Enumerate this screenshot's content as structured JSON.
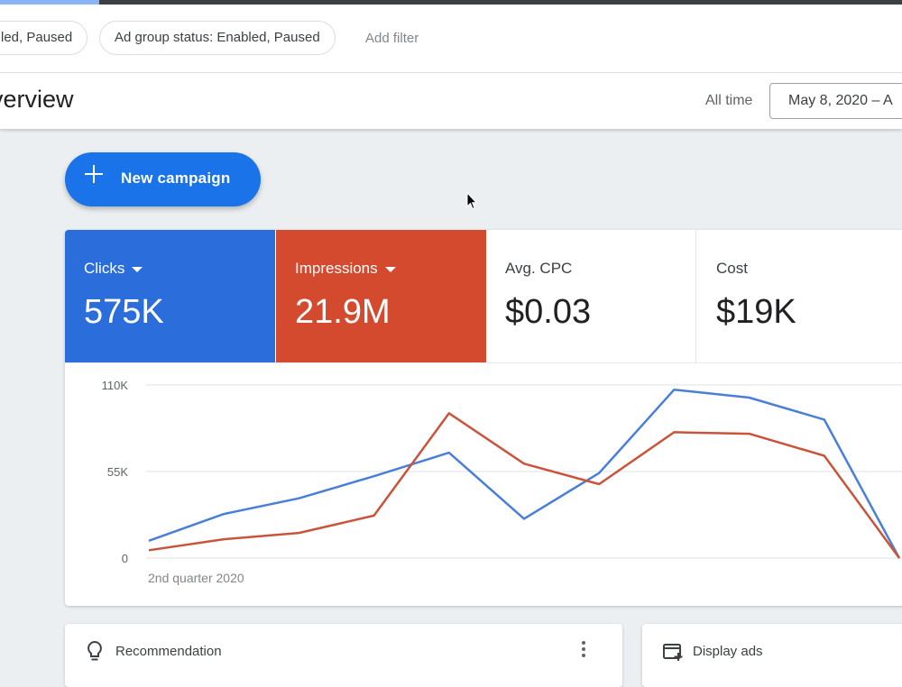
{
  "filters": {
    "chips": [
      "led, Paused",
      "Ad group status: Enabled, Paused"
    ],
    "add_filter": "Add filter"
  },
  "header": {
    "title": "verview",
    "range_label": "All time",
    "date_range": "May 8, 2020 – A"
  },
  "fab": {
    "label": "New campaign",
    "icon": "plus-icon"
  },
  "metrics": [
    {
      "label": "Clicks",
      "value": "575K",
      "color": "#2b6edb",
      "selected": true
    },
    {
      "label": "Impressions",
      "value": "21.9M",
      "color": "#d44a2e",
      "selected": true
    },
    {
      "label": "Avg. CPC",
      "value": "$0.03",
      "selected": false
    },
    {
      "label": "Cost",
      "value": "$19K",
      "selected": false
    }
  ],
  "chart_data": {
    "type": "line",
    "x_label_text": "2nd quarter 2020",
    "x": [
      0,
      1,
      2,
      3,
      4,
      5,
      6,
      7,
      8,
      9,
      10
    ],
    "yticks": [
      "110K",
      "55K",
      "0"
    ],
    "ylim": [
      0,
      110000
    ],
    "grid": true,
    "series": [
      {
        "color": "#4a7fd8",
        "values": [
          11000,
          28000,
          38000,
          52000,
          67000,
          25000,
          54000,
          107000,
          102000,
          88000,
          0
        ]
      },
      {
        "color": "#c9543a",
        "values": [
          5000,
          12000,
          16000,
          27000,
          92000,
          60000,
          47000,
          80000,
          79000,
          65000,
          0
        ]
      }
    ]
  },
  "cards": {
    "recommendation": {
      "label": "Recommendation",
      "icon": "lightbulb-icon"
    },
    "display_ads": {
      "label": "Display ads",
      "icon": "display-ads-icon"
    }
  }
}
